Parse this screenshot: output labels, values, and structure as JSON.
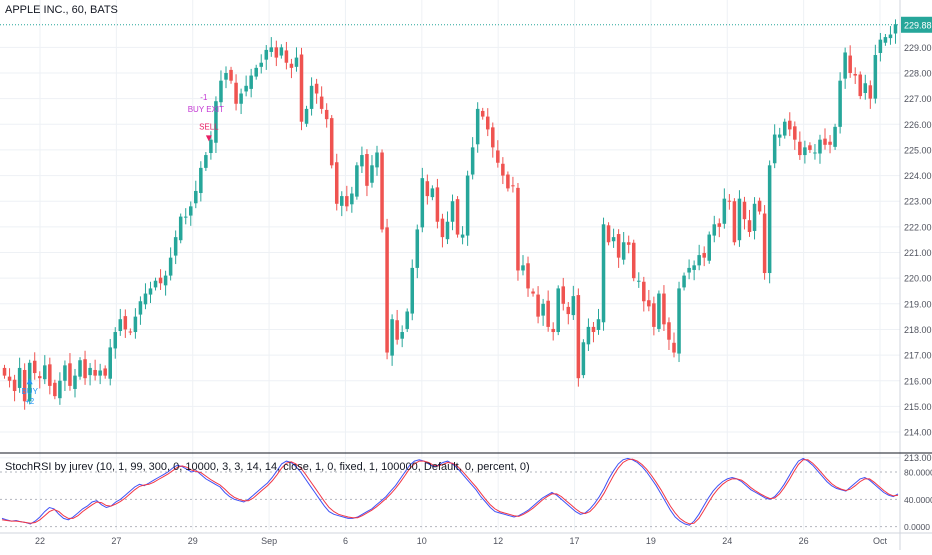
{
  "chart": {
    "symbol_title": "APPLE INC., 60, BATS",
    "last_price_label": "229.88",
    "indicator_title": "StochRSI by jurev (10, 1, 99, 300, 0, 10000, 3, 3, 14, 14, close, 1, 0, fixed, 1, 100000, Default, 0, percent, 0)"
  },
  "colors": {
    "up": "#26a69a",
    "down": "#ef5350",
    "k_line": "#3f51f5",
    "d_line": "#f23645",
    "price_tag": "#26a69a",
    "buy_marker": "#2196f3",
    "sell_marker": "#e91e63",
    "buy_exit_marker": "#c335d3",
    "grid": "#eef1f5"
  },
  "chart_data": [
    {
      "type": "candlestick",
      "title": "APPLE INC., 60, BATS",
      "ylim": [
        213.3,
        230.3
      ],
      "y_ticks": [
        "213.00",
        "214.00",
        "215.00",
        "216.00",
        "217.00",
        "218.00",
        "219.00",
        "220.00",
        "221.00",
        "222.00",
        "223.00",
        "224.00",
        "225.00",
        "226.00",
        "227.00",
        "228.00",
        "229.00"
      ],
      "x_ticks": [
        "22",
        "27",
        "29",
        "Sep",
        "6",
        "10",
        "12",
        "17",
        "19",
        "24",
        "26",
        "Oct"
      ],
      "last_price": 229.88,
      "grid": true,
      "series_closes": [
        216.2,
        216.0,
        215.6,
        216.5,
        215.2,
        216.7,
        216.3,
        216.1,
        216.6,
        215.8,
        215.4,
        216.0,
        216.6,
        215.8,
        216.2,
        216.8,
        216.1,
        216.5,
        216.2,
        216.4,
        216.2,
        217.3,
        217.9,
        218.4,
        218.0,
        217.9,
        218.5,
        219.1,
        219.4,
        219.6,
        219.9,
        219.8,
        220.1,
        220.8,
        221.6,
        222.4,
        222.4,
        222.8,
        223.4,
        224.3,
        224.8,
        225.4,
        226.9,
        227.7,
        228.0,
        227.7,
        226.8,
        227.2,
        227.5,
        227.9,
        228.2,
        228.4,
        228.9,
        229.0,
        228.6,
        229.0,
        228.4,
        228.2,
        228.6,
        226.1,
        226.6,
        227.5,
        227.2,
        226.6,
        226.2,
        224.4,
        222.9,
        223.2,
        222.8,
        223.3,
        224.4,
        224.8,
        223.6,
        224.4,
        224.9,
        221.9,
        217.1,
        218.4,
        217.6,
        217.9,
        218.7,
        220.4,
        221.9,
        223.9,
        223.2,
        223.5,
        222.2,
        221.6,
        222.2,
        223.0,
        221.7,
        221.7,
        224.0,
        225.1,
        226.6,
        226.3,
        225.8,
        225.1,
        224.5,
        224.0,
        223.5,
        223.6,
        220.3,
        220.5,
        219.6,
        219.4,
        218.5,
        219.0,
        218.1,
        217.9,
        219.6,
        219.0,
        218.6,
        219.3,
        216.1,
        217.5,
        218.1,
        217.9,
        218.4,
        222.1,
        221.4,
        221.6,
        220.8,
        221.4,
        221.3,
        220.0,
        219.9,
        219.1,
        218.9,
        218.1,
        219.4,
        218.2,
        217.6,
        217.1,
        219.6,
        220.1,
        220.4,
        220.5,
        220.9,
        220.8,
        221.7,
        222.1,
        222.0,
        223.1,
        223.0,
        221.4,
        223.1,
        222.3,
        221.8,
        222.9,
        222.6,
        220.2,
        224.4,
        225.6,
        225.6,
        226.1,
        225.8,
        225.4,
        224.8,
        225.1,
        225.0,
        224.9,
        225.4,
        225.2,
        225.2,
        225.9,
        227.7,
        228.8,
        228.0,
        227.9,
        227.1,
        227.6,
        227.0,
        228.7,
        229.3,
        229.4,
        229.5,
        229.9
      ],
      "annotations": [
        {
          "label": "BUY",
          "sub_label": "+2",
          "color": "#2196f3",
          "candle_index": 5
        },
        {
          "label": "BUY EXIT",
          "sub_label": "-1",
          "color": "#c335d3",
          "candle_index": 40
        },
        {
          "label": "SELL",
          "sub_label": "",
          "color": "#e91e63",
          "candle_index": 40
        }
      ]
    },
    {
      "type": "line",
      "title": "StochRSI by jurev (10, 1, 99, 300, 0, 10000, 3, 3, 14, 14, close, 1, 0, fixed, 1, 100000, Default, 0, percent, 0)",
      "ylim": [
        -5,
        105
      ],
      "y_ticks": [
        "0.0000",
        "40.0000",
        "80.0000"
      ],
      "series": [
        {
          "values": [
            12,
            10,
            8,
            9,
            7,
            6,
            4,
            8,
            14,
            22,
            28,
            26,
            18,
            12,
            10,
            14,
            20,
            26,
            30,
            36,
            38,
            32,
            28,
            30,
            36,
            40,
            46,
            52,
            58,
            62,
            60,
            64,
            68,
            72,
            76,
            80,
            86,
            90,
            88,
            84,
            80,
            82,
            76,
            70,
            66,
            62,
            58,
            50,
            44,
            40,
            38,
            36,
            40,
            46,
            52,
            58,
            64,
            72,
            82,
            92,
            96,
            94,
            88,
            80,
            70,
            60,
            50,
            40,
            30,
            22,
            18,
            16,
            14,
            12,
            12,
            14,
            18,
            22,
            26,
            32,
            38,
            44,
            52,
            60,
            70,
            80,
            90,
            96,
            98,
            96,
            92,
            88,
            90,
            94,
            96,
            92,
            86,
            78,
            70,
            62,
            54,
            44,
            36,
            28,
            22,
            20,
            18,
            16,
            14,
            16,
            20,
            24,
            30,
            36,
            42,
            46,
            50,
            46,
            40,
            34,
            28,
            22,
            18,
            20,
            26,
            34,
            44,
            56,
            70,
            82,
            92,
            98,
            100,
            98,
            94,
            88,
            80,
            70,
            60,
            48,
            36,
            24,
            14,
            8,
            4,
            2,
            8,
            18,
            30,
            42,
            52,
            60,
            66,
            70,
            72,
            70,
            66,
            60,
            54,
            50,
            46,
            42,
            40,
            44,
            52,
            62,
            74,
            86,
            96,
            100,
            96,
            90,
            82,
            74,
            66,
            60,
            56,
            54,
            52,
            58,
            64,
            70,
            72,
            68,
            62,
            56,
            50,
            46,
            44,
            48
          ]
        },
        {
          "values": [
            10,
            9,
            8,
            8,
            7,
            6,
            5,
            6,
            10,
            16,
            22,
            25,
            22,
            16,
            12,
            12,
            16,
            22,
            27,
            32,
            36,
            35,
            31,
            30,
            33,
            37,
            42,
            48,
            54,
            59,
            61,
            62,
            65,
            69,
            73,
            77,
            82,
            87,
            89,
            87,
            83,
            81,
            79,
            74,
            69,
            65,
            61,
            55,
            48,
            43,
            40,
            38,
            38,
            42,
            48,
            54,
            60,
            67,
            76,
            86,
            93,
            95,
            92,
            86,
            77,
            67,
            57,
            47,
            37,
            28,
            22,
            18,
            16,
            14,
            13,
            13,
            16,
            20,
            24,
            29,
            35,
            41,
            48,
            56,
            65,
            75,
            85,
            92,
            96,
            96,
            94,
            90,
            89,
            91,
            94,
            93,
            89,
            82,
            74,
            66,
            58,
            49,
            40,
            32,
            26,
            22,
            20,
            18,
            16,
            15,
            18,
            22,
            27,
            33,
            39,
            44,
            48,
            48,
            44,
            38,
            32,
            26,
            21,
            19,
            22,
            29,
            38,
            49,
            62,
            75,
            86,
            94,
            98,
            99,
            96,
            91,
            84,
            75,
            65,
            54,
            42,
            30,
            20,
            12,
            7,
            4,
            5,
            12,
            23,
            35,
            46,
            55,
            62,
            67,
            70,
            70,
            68,
            63,
            57,
            52,
            48,
            44,
            41,
            42,
            48,
            57,
            68,
            80,
            91,
            98,
            98,
            93,
            86,
            78,
            70,
            63,
            58,
            55,
            53,
            55,
            60,
            66,
            70,
            70,
            65,
            59,
            53,
            48,
            45,
            46
          ]
        }
      ]
    }
  ]
}
